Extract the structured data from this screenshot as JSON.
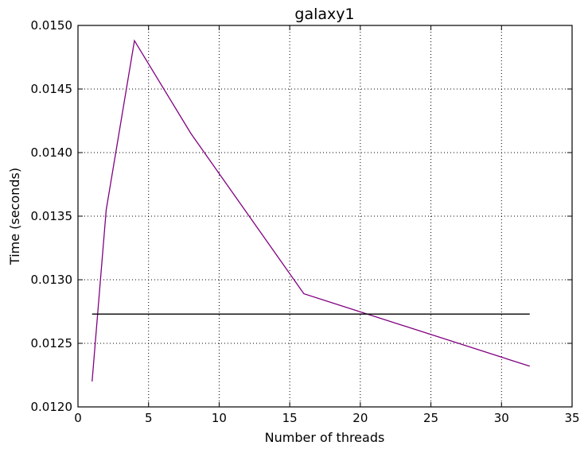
{
  "chart_data": {
    "type": "line",
    "title": "galaxy1",
    "xlabel": "Number of threads",
    "ylabel": "Time (seconds)",
    "xlim": [
      0,
      35
    ],
    "ylim": [
      0.012,
      0.015
    ],
    "x_ticks": [
      0,
      5,
      10,
      15,
      20,
      25,
      30,
      35
    ],
    "y_ticks": [
      0.012,
      0.0125,
      0.013,
      0.0135,
      0.014,
      0.0145,
      0.015
    ],
    "x_tick_labels": [
      "0",
      "5",
      "10",
      "15",
      "20",
      "25",
      "30",
      "35"
    ],
    "y_tick_labels": [
      "0.0120",
      "0.0125",
      "0.0130",
      "0.0135",
      "0.0140",
      "0.0145",
      "0.0150"
    ],
    "grid": true,
    "series": [
      {
        "color": "#800080",
        "x": [
          1,
          2,
          4,
          8,
          16,
          32
        ],
        "y": [
          0.0122,
          0.01355,
          0.01488,
          0.01415,
          0.01289,
          0.01232
        ]
      },
      {
        "color": "#000000",
        "x": [
          1,
          32
        ],
        "y": [
          0.01273,
          0.01273
        ]
      }
    ]
  }
}
